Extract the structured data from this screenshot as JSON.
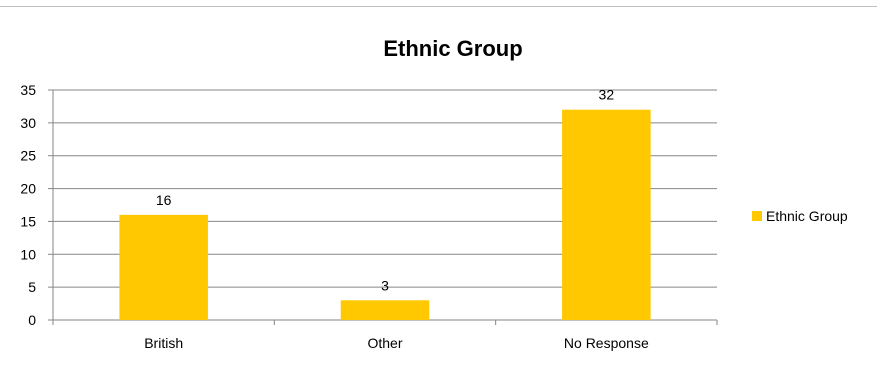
{
  "chart_data": {
    "type": "bar",
    "title": "Ethnic Group",
    "xlabel": "",
    "ylabel": "",
    "categories": [
      "British",
      "Other",
      "No Response"
    ],
    "series": [
      {
        "name": "Ethnic Group",
        "values": [
          16,
          3,
          32
        ],
        "color": "#FFC800"
      }
    ],
    "ylim": [
      0,
      35
    ],
    "yticks": [
      0,
      5,
      10,
      15,
      20,
      25,
      30,
      35
    ],
    "grid": true,
    "data_labels": true,
    "legend": "right"
  }
}
